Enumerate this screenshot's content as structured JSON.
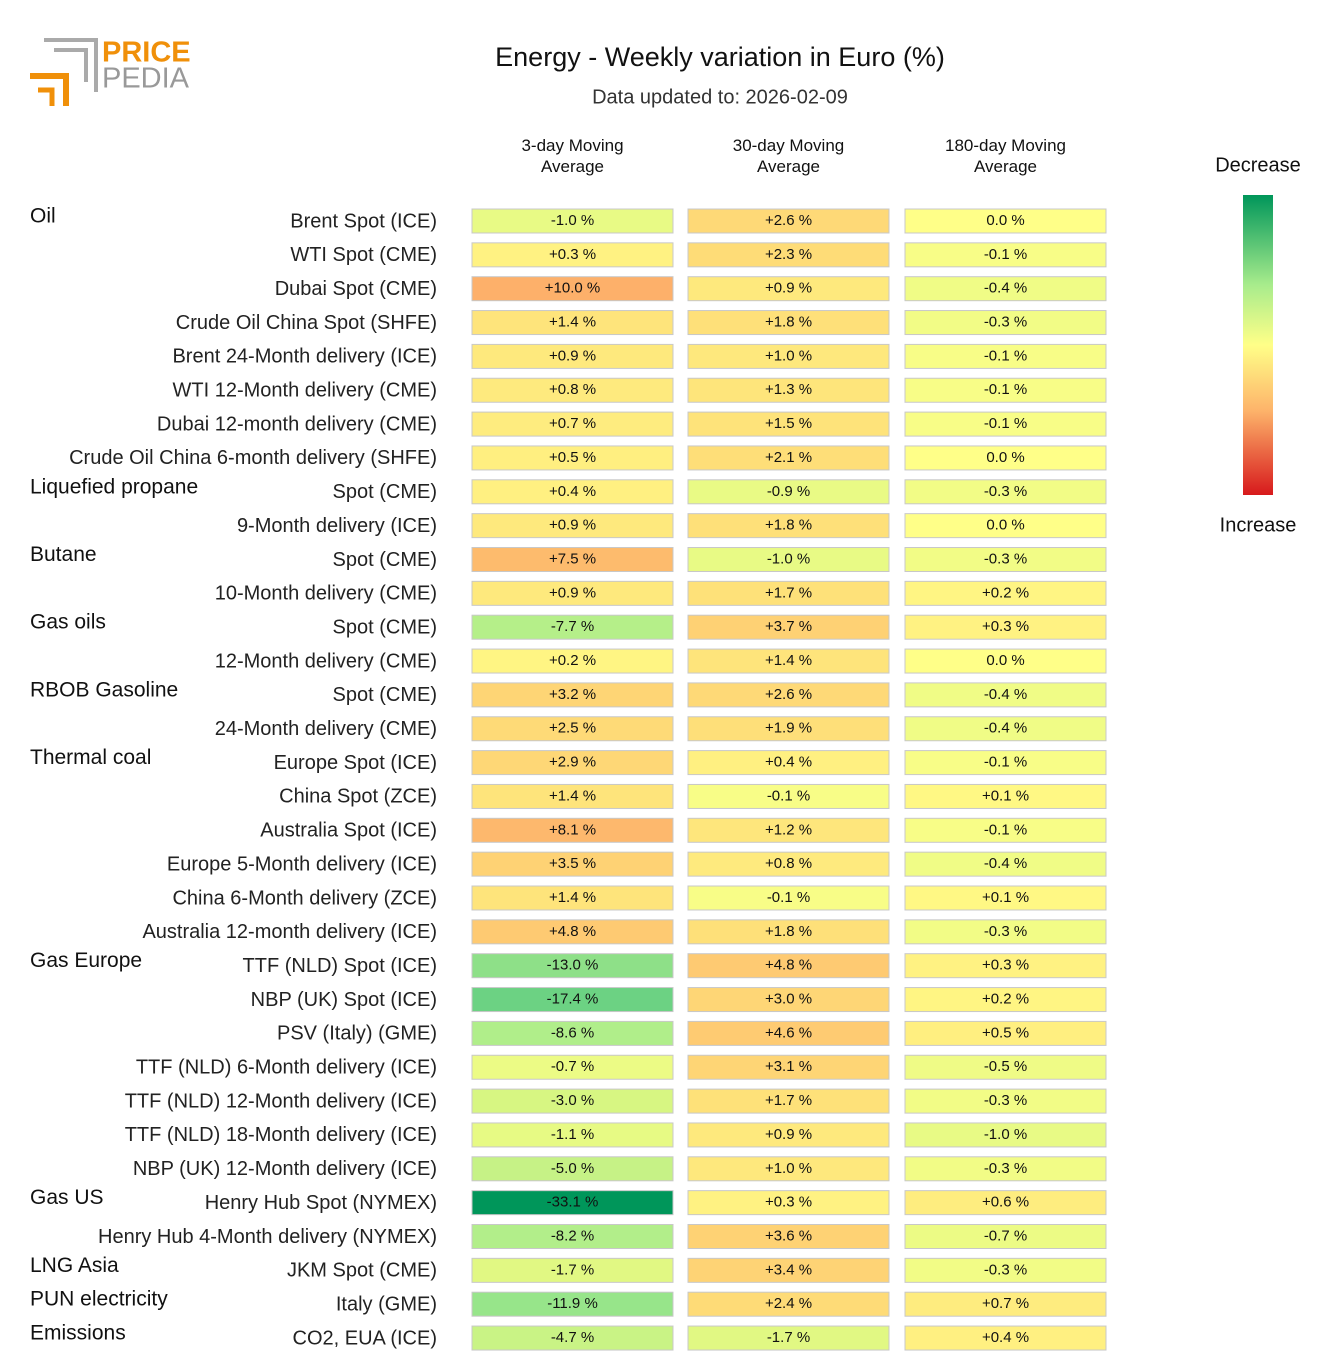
{
  "logo": [
    "PRICE",
    "PEDIA"
  ],
  "chart_data": {
    "type": "heatmap",
    "title": "Energy - Weekly variation in Euro (%)",
    "subtitle": "Data updated to: 2026-02-09",
    "colorbar_labels": [
      "Decrease",
      "Increase"
    ],
    "groups": [
      "Oil",
      null,
      null,
      null,
      null,
      null,
      null,
      null,
      "Liquefied propane",
      null,
      "Butane",
      null,
      "Gas oils",
      null,
      "RBOB Gasoline",
      null,
      "Thermal coal",
      null,
      null,
      null,
      null,
      null,
      "Gas Europe",
      null,
      null,
      null,
      null,
      null,
      null,
      "Gas US",
      null,
      "LNG Asia",
      "PUN electricity",
      "Emissions"
    ],
    "categories": [
      "Brent Spot (ICE)",
      "WTI Spot (CME)",
      "Dubai Spot (CME)",
      "Crude Oil China Spot (SHFE)",
      "Brent 24-Month delivery (ICE)",
      "WTI 12-Month delivery (CME)",
      "Dubai 12-month delivery (CME)",
      "Crude Oil China 6-month delivery (SHFE)",
      "Spot (CME)",
      "9-Month delivery (ICE)",
      "Spot (CME)",
      "10-Month delivery (CME)",
      "Spot (CME)",
      "12-Month delivery (CME)",
      "Spot (CME)",
      "24-Month delivery (CME)",
      "Europe Spot (ICE)",
      "China Spot (ZCE)",
      "Australia Spot (ICE)",
      "Europe 5-Month delivery (ICE)",
      "China 6-Month delivery (ZCE)",
      "Australia 12-month delivery (ICE)",
      "TTF (NLD) Spot (ICE)",
      "NBP (UK) Spot (ICE)",
      "PSV (Italy) (GME)",
      "TTF (NLD) 6-Month delivery (ICE)",
      "TTF (NLD) 12-Month delivery (ICE)",
      "TTF (NLD) 18-Month delivery (ICE)",
      "NBP (UK) 12-Month delivery (ICE)",
      "Henry Hub Spot (NYMEX)",
      "Henry Hub 4-Month delivery (NYMEX)",
      "JKM Spot (CME)",
      "Italy (GME)",
      "CO2, EUA (ICE)"
    ],
    "series": [
      {
        "name": "3-day Moving Average",
        "values": [
          -1.0,
          0.3,
          10.0,
          1.4,
          0.9,
          0.8,
          0.7,
          0.5,
          0.4,
          0.9,
          7.5,
          0.9,
          -7.7,
          0.2,
          3.2,
          2.5,
          2.9,
          1.4,
          8.1,
          3.5,
          1.4,
          4.8,
          -13.0,
          -17.4,
          -8.6,
          -0.7,
          -3.0,
          -1.1,
          -5.0,
          -33.1,
          -8.2,
          -1.7,
          -11.9,
          -4.7
        ],
        "value_labels": [
          "-1.0 %",
          "+0.3 %",
          "+10.0 %",
          "+1.4 %",
          "+0.9 %",
          "+0.8 %",
          "+0.7 %",
          "+0.5 %",
          "+0.4 %",
          "+0.9 %",
          "+7.5 %",
          "+0.9 %",
          "-7.7 %",
          "+0.2 %",
          "+3.2 %",
          "+2.5 %",
          "+2.9 %",
          "+1.4 %",
          "+8.1 %",
          "+3.5 %",
          "+1.4 %",
          "+4.8 %",
          "-13.0 %",
          "-17.4 %",
          "-8.6 %",
          "-0.7 %",
          "-3.0 %",
          "-1.1 %",
          "-5.0 %",
          "-33.1 %",
          "-8.2 %",
          "-1.7 %",
          "-11.9 %",
          "-4.7 %"
        ]
      },
      {
        "name": "30-day Moving Average",
        "values": [
          2.6,
          2.3,
          0.9,
          1.8,
          1.0,
          1.3,
          1.5,
          2.1,
          -0.9,
          1.8,
          -1.0,
          1.7,
          3.7,
          1.4,
          2.6,
          1.9,
          0.4,
          -0.1,
          1.2,
          0.8,
          -0.1,
          1.8,
          4.8,
          3.0,
          4.6,
          3.1,
          1.7,
          0.9,
          1.0,
          0.3,
          3.6,
          3.4,
          2.4,
          -1.7
        ],
        "value_labels": [
          "+2.6 %",
          "+2.3 %",
          "+0.9 %",
          "+1.8 %",
          "+1.0 %",
          "+1.3 %",
          "+1.5 %",
          "+2.1 %",
          "-0.9 %",
          "+1.8 %",
          "-1.0 %",
          "+1.7 %",
          "+3.7 %",
          "+1.4 %",
          "+2.6 %",
          "+1.9 %",
          "+0.4 %",
          "-0.1 %",
          "+1.2 %",
          "+0.8 %",
          "-0.1 %",
          "+1.8 %",
          "+4.8 %",
          "+3.0 %",
          "+4.6 %",
          "+3.1 %",
          "+1.7 %",
          "+0.9 %",
          "+1.0 %",
          "+0.3 %",
          "+3.6 %",
          "+3.4 %",
          "+2.4 %",
          "-1.7 %"
        ]
      },
      {
        "name": "180-day Moving Average",
        "values": [
          0.0,
          -0.1,
          -0.4,
          -0.3,
          -0.1,
          -0.1,
          -0.1,
          0.0,
          -0.3,
          0.0,
          -0.3,
          0.2,
          0.3,
          0.0,
          -0.4,
          -0.4,
          -0.1,
          0.1,
          -0.1,
          -0.4,
          0.1,
          -0.3,
          0.3,
          0.2,
          0.5,
          -0.5,
          -0.3,
          -1.0,
          -0.3,
          0.6,
          -0.7,
          -0.3,
          0.7,
          0.4
        ],
        "value_labels": [
          "0.0 %",
          "-0.1 %",
          "-0.4 %",
          "-0.3 %",
          "-0.1 %",
          "-0.1 %",
          "-0.1 %",
          "0.0 %",
          "-0.3 %",
          "0.0 %",
          "-0.3 %",
          "+0.2 %",
          "+0.3 %",
          "0.0 %",
          "-0.4 %",
          "-0.4 %",
          "-0.1 %",
          "+0.1 %",
          "-0.1 %",
          "-0.4 %",
          "+0.1 %",
          "-0.3 %",
          "+0.3 %",
          "+0.2 %",
          "+0.5 %",
          "-0.5 %",
          "-0.3 %",
          "-1.0 %",
          "-0.3 %",
          "+0.6 %",
          "-0.7 %",
          "-0.3 %",
          "+0.7 %",
          "+0.4 %"
        ]
      }
    ]
  }
}
